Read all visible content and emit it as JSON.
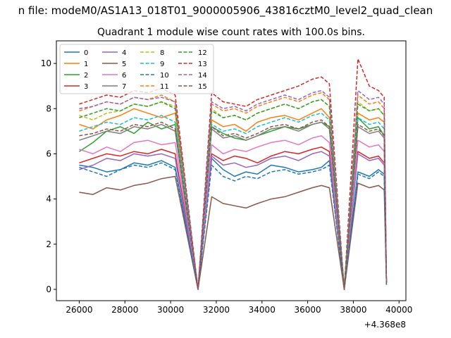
{
  "figure": {
    "suptitle": "n file: modeM0/AS1A13_018T01_9000005906_43816cztM0_level2_quad_clean",
    "offset_label": "+4.368e8"
  },
  "chart_data": {
    "type": "line",
    "title": "Quadrant 1 module wise count rates with 100.0s bins.",
    "xlabel": "",
    "ylabel": "",
    "xlim": [
      25000,
      40300
    ],
    "ylim": [
      -0.5,
      11.0
    ],
    "x_offset": 436800000,
    "xticks": [
      {
        "value": 26000,
        "label": "26000"
      },
      {
        "value": 28000,
        "label": "28000"
      },
      {
        "value": 30000,
        "label": "30000"
      },
      {
        "value": 32000,
        "label": "32000"
      },
      {
        "value": 34000,
        "label": "34000"
      },
      {
        "value": 36000,
        "label": "36000"
      },
      {
        "value": 38000,
        "label": "38000"
      },
      {
        "value": 40000,
        "label": "40000"
      }
    ],
    "yticks": [
      {
        "value": 0,
        "label": "0"
      },
      {
        "value": 2,
        "label": "2"
      },
      {
        "value": 4,
        "label": "4"
      },
      {
        "value": 6,
        "label": "6"
      },
      {
        "value": 8,
        "label": "8"
      },
      {
        "value": 10,
        "label": "10"
      }
    ],
    "grid": false,
    "legend_position": "top-left",
    "legend_columns": 4,
    "series": [
      {
        "name": "0",
        "color": "#1f77b4",
        "dash": false,
        "values": [
          5.5,
          5.4,
          5.2,
          5.3,
          5.6,
          5.5,
          5.7,
          5.4,
          0,
          5.8,
          5.3,
          5.0,
          5.2,
          5.1,
          5.5,
          5.4,
          5.2,
          5.3,
          5.4,
          5.7,
          0,
          5.2,
          5.0,
          5.3,
          5.1,
          0.2
        ]
      },
      {
        "name": "1",
        "color": "#ff7f0e",
        "dash": false,
        "values": [
          7.3,
          7.1,
          7.5,
          7.7,
          8.0,
          7.8,
          7.6,
          7.8,
          0,
          7.5,
          7.2,
          7.3,
          7.0,
          7.4,
          7.6,
          7.7,
          7.5,
          7.8,
          8.0,
          7.6,
          0,
          7.8,
          7.5,
          7.6,
          7.4,
          0.3
        ]
      },
      {
        "name": "2",
        "color": "#2ca02c",
        "dash": false,
        "values": [
          6.1,
          6.5,
          7.0,
          7.2,
          6.9,
          7.4,
          7.1,
          7.3,
          0,
          7.2,
          6.9,
          6.7,
          6.6,
          6.8,
          7.0,
          7.2,
          7.1,
          7.3,
          7.4,
          7.2,
          0,
          7.6,
          7.1,
          7.2,
          6.8,
          0.3
        ]
      },
      {
        "name": "3",
        "color": "#d62728",
        "dash": false,
        "values": [
          5.6,
          5.8,
          6.0,
          5.9,
          6.1,
          6.0,
          6.2,
          6.0,
          0,
          6.0,
          5.7,
          5.9,
          5.8,
          5.6,
          5.9,
          6.1,
          6.0,
          6.2,
          6.3,
          6.1,
          0,
          6.1,
          5.8,
          5.9,
          5.6,
          0.3
        ]
      },
      {
        "name": "4",
        "color": "#9467bd",
        "dash": false,
        "values": [
          5.3,
          5.5,
          5.8,
          5.7,
          6.0,
          5.9,
          6.0,
          5.8,
          0,
          5.9,
          5.5,
          5.6,
          5.4,
          5.5,
          5.8,
          5.9,
          5.7,
          6.0,
          6.1,
          5.9,
          0,
          6.0,
          5.7,
          5.8,
          5.5,
          0.3
        ]
      },
      {
        "name": "5",
        "color": "#8c564b",
        "dash": false,
        "values": [
          4.3,
          4.2,
          4.5,
          4.4,
          4.6,
          4.7,
          4.9,
          5.0,
          0,
          4.1,
          3.8,
          3.7,
          3.6,
          3.8,
          4.0,
          4.1,
          4.3,
          4.5,
          4.6,
          4.5,
          0,
          4.7,
          4.5,
          4.6,
          4.4,
          0.3
        ]
      },
      {
        "name": "6",
        "color": "#e377c2",
        "dash": false,
        "values": [
          6.2,
          6.0,
          6.3,
          6.1,
          6.5,
          6.6,
          6.4,
          6.5,
          0,
          6.4,
          6.0,
          6.2,
          6.1,
          6.3,
          6.5,
          6.6,
          6.4,
          6.7,
          6.8,
          6.5,
          0,
          6.6,
          6.3,
          6.4,
          6.1,
          0.3
        ]
      },
      {
        "name": "7",
        "color": "#7f7f7f",
        "dash": false,
        "values": [
          6.6,
          6.8,
          7.0,
          6.9,
          7.2,
          7.1,
          7.3,
          7.0,
          0,
          7.1,
          6.7,
          6.8,
          6.6,
          6.8,
          7.1,
          7.2,
          7.0,
          7.3,
          7.4,
          7.1,
          0,
          7.2,
          6.9,
          7.0,
          6.7,
          0.3
        ]
      },
      {
        "name": "8",
        "color": "#bcbd22",
        "dash": true,
        "values": [
          7.7,
          7.5,
          7.8,
          7.9,
          8.2,
          8.1,
          8.3,
          8.1,
          0,
          8.0,
          7.6,
          7.7,
          7.5,
          7.8,
          8.0,
          8.2,
          8.0,
          8.3,
          8.4,
          8.1,
          0,
          8.3,
          7.9,
          8.0,
          7.7,
          0.3
        ]
      },
      {
        "name": "9",
        "color": "#17becf",
        "dash": true,
        "values": [
          7.0,
          7.2,
          7.4,
          7.3,
          7.6,
          7.5,
          7.7,
          7.4,
          0,
          7.3,
          7.0,
          7.1,
          6.9,
          7.2,
          7.4,
          7.6,
          7.4,
          7.7,
          7.8,
          7.5,
          0,
          7.6,
          7.3,
          7.4,
          7.1,
          0.3
        ]
      },
      {
        "name": "10",
        "color": "#1f77b4",
        "dash": true,
        "values": [
          5.4,
          5.2,
          5.0,
          5.3,
          5.5,
          5.4,
          5.6,
          5.3,
          0,
          5.5,
          5.0,
          4.8,
          5.0,
          4.9,
          5.2,
          5.3,
          5.1,
          5.2,
          5.3,
          5.5,
          0,
          5.1,
          4.9,
          5.2,
          5.0,
          0.2
        ]
      },
      {
        "name": "11",
        "color": "#ff7f0e",
        "dash": true,
        "values": [
          7.9,
          8.1,
          8.3,
          8.2,
          8.5,
          8.4,
          8.6,
          8.3,
          0,
          8.2,
          7.9,
          8.0,
          7.8,
          8.1,
          8.3,
          8.5,
          8.3,
          8.6,
          8.7,
          8.4,
          0,
          8.6,
          8.2,
          8.3,
          8.0,
          0.3
        ]
      },
      {
        "name": "12",
        "color": "#2ca02c",
        "dash": true,
        "values": [
          7.6,
          7.8,
          8.0,
          7.9,
          8.2,
          8.1,
          8.3,
          8.0,
          0,
          7.9,
          7.6,
          7.7,
          7.5,
          7.8,
          8.0,
          8.2,
          8.0,
          8.3,
          8.4,
          8.1,
          0,
          8.2,
          7.9,
          8.0,
          7.7,
          0.3
        ]
      },
      {
        "name": "13",
        "color": "#d62728",
        "dash": true,
        "values": [
          8.2,
          8.4,
          8.6,
          8.5,
          8.8,
          8.7,
          8.9,
          8.6,
          0,
          8.7,
          8.3,
          8.2,
          8.1,
          8.4,
          8.6,
          8.8,
          9.0,
          9.3,
          9.4,
          9.1,
          0,
          10.2,
          9.0,
          8.8,
          8.5,
          0.3
        ]
      },
      {
        "name": "14",
        "color": "#9467bd",
        "dash": true,
        "values": [
          8.0,
          8.1,
          8.3,
          8.2,
          8.5,
          8.4,
          8.5,
          8.3,
          0,
          8.3,
          8.0,
          8.1,
          7.9,
          8.2,
          8.4,
          8.6,
          8.4,
          8.7,
          8.8,
          8.5,
          0,
          8.8,
          8.4,
          8.5,
          8.2,
          0.3
        ]
      },
      {
        "name": "15",
        "color": "#8c564b",
        "dash": true,
        "values": [
          6.8,
          6.9,
          7.1,
          7.0,
          7.3,
          7.2,
          7.4,
          7.1,
          0,
          7.2,
          6.8,
          6.9,
          6.7,
          6.9,
          7.2,
          7.3,
          7.1,
          7.4,
          7.5,
          7.2,
          0,
          7.3,
          7.0,
          7.1,
          6.8,
          0.3
        ]
      }
    ],
    "x": [
      26000,
      26600,
      27200,
      27800,
      28400,
      29000,
      29600,
      30200,
      31200,
      31800,
      32300,
      32800,
      33300,
      33800,
      34400,
      35000,
      35600,
      36200,
      36600,
      36950,
      37600,
      38200,
      38700,
      39100,
      39350,
      39450
    ]
  }
}
